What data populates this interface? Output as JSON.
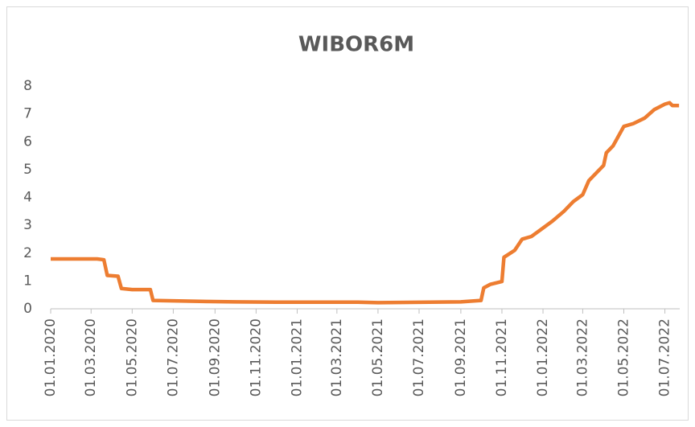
{
  "chart_data": {
    "type": "line",
    "title": "WIBOR6M",
    "x": [
      "01.01.2020",
      "10.03.2020",
      "20.03.2020",
      "25.03.2020",
      "10.04.2020",
      "15.04.2020",
      "01.05.2020",
      "28.05.2020",
      "01.06.2020",
      "01.08.2020",
      "01.10.2020",
      "01.12.2020",
      "01.04.2021",
      "01.05.2021",
      "01.09.2021",
      "01.10.2021",
      "05.10.2021",
      "15.10.2021",
      "01.11.2021",
      "04.11.2021",
      "20.11.2021",
      "01.12.2021",
      "15.12.2021",
      "01.01.2022",
      "15.01.2022",
      "01.02.2022",
      "15.02.2022",
      "01.03.2022",
      "10.03.2022",
      "01.04.2022",
      "05.04.2022",
      "15.04.2022",
      "01.05.2022",
      "15.05.2022",
      "01.06.2022",
      "15.06.2022",
      "01.07.2022",
      "08.07.2022",
      "12.07.2022",
      "22.07.2022"
    ],
    "series": [
      {
        "name": "WIBOR6M",
        "color": "#ed7d31",
        "values": [
          1.79,
          1.79,
          1.76,
          1.2,
          1.17,
          0.73,
          0.69,
          0.69,
          0.3,
          0.27,
          0.25,
          0.24,
          0.24,
          0.22,
          0.25,
          0.3,
          0.75,
          0.88,
          0.98,
          1.85,
          2.1,
          2.5,
          2.6,
          2.9,
          3.15,
          3.5,
          3.85,
          4.1,
          4.6,
          5.15,
          5.6,
          5.85,
          6.55,
          6.65,
          6.85,
          7.15,
          7.35,
          7.4,
          7.3,
          7.3
        ]
      }
    ],
    "xlim": [
      "01.01.2020",
      "23.07.2022"
    ],
    "xticks": [
      "01.01.2020",
      "01.03.2020",
      "01.05.2020",
      "01.07.2020",
      "01.09.2020",
      "01.11.2020",
      "01.01.2021",
      "01.03.2021",
      "01.05.2021",
      "01.07.2021",
      "01.09.2021",
      "01.11.2021",
      "01.01.2022",
      "01.03.2022",
      "01.05.2022",
      "01.07.2022"
    ],
    "ylim": [
      0,
      8
    ],
    "yticks": [
      0,
      1,
      2,
      3,
      4,
      5,
      6,
      7,
      8
    ],
    "grid": false
  }
}
